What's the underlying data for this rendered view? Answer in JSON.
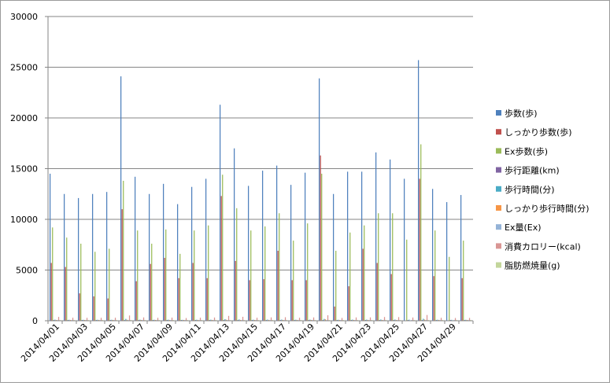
{
  "chart_data": {
    "type": "bar",
    "ylim": [
      0,
      30000
    ],
    "yticks": [
      0,
      5000,
      10000,
      15000,
      20000,
      25000,
      30000
    ],
    "grid": true,
    "legend_position": "right",
    "categories": [
      "2014/04/01",
      "2014/04/02",
      "2014/04/03",
      "2014/04/04",
      "2014/04/05",
      "2014/04/06",
      "2014/04/07",
      "2014/04/08",
      "2014/04/09",
      "2014/04/10",
      "2014/04/11",
      "2014/04/12",
      "2014/04/13",
      "2014/04/14",
      "2014/04/15",
      "2014/04/16",
      "2014/04/17",
      "2014/04/18",
      "2014/04/19",
      "2014/04/20",
      "2014/04/21",
      "2014/04/22",
      "2014/04/23",
      "2014/04/24",
      "2014/04/25",
      "2014/04/26",
      "2014/04/27",
      "2014/04/28",
      "2014/04/29",
      "2014/04/30"
    ],
    "xtick_labels": [
      "2014/04/01",
      "2014/04/03",
      "2014/04/05",
      "2014/04/07",
      "2014/04/09",
      "2014/04/11",
      "2014/04/13",
      "2014/04/15",
      "2014/04/17",
      "2014/04/19",
      "2014/04/21",
      "2014/04/23",
      "2014/04/25",
      "2014/04/27",
      "2014/04/29"
    ],
    "series": [
      {
        "name": "歩数(歩)",
        "color": "#4f81bd",
        "values": [
          14500,
          12500,
          12100,
          12500,
          12700,
          24100,
          14200,
          12500,
          13500,
          11500,
          13200,
          14000,
          21300,
          17000,
          13300,
          14800,
          15300,
          13400,
          14600,
          23900,
          12500,
          14700,
          14700,
          16600,
          15900,
          14000,
          25700,
          13000,
          11700,
          12400
        ]
      },
      {
        "name": "しっかり歩数(歩)",
        "color": "#c0504d",
        "values": [
          5700,
          5300,
          2700,
          2400,
          2200,
          11000,
          3900,
          5600,
          6200,
          4200,
          5700,
          4200,
          12300,
          5900,
          4000,
          4100,
          6900,
          4000,
          4000,
          16300,
          1400,
          3400,
          7100,
          5700,
          4600,
          0,
          14000,
          4400,
          0,
          4200
        ]
      },
      {
        "name": "Ex歩数(歩)",
        "color": "#9bbb59",
        "values": [
          9200,
          8200,
          7600,
          6800,
          7100,
          13800,
          8900,
          7600,
          9000,
          6600,
          8900,
          9400,
          14400,
          11100,
          8900,
          9300,
          10600,
          7900,
          9600,
          14500,
          6900,
          8700,
          9400,
          10600,
          10600,
          8000,
          17400,
          8900,
          6300,
          7900
        ]
      },
      {
        "name": "歩行距離(km)",
        "color": "#8064a2",
        "values": [
          10,
          9,
          9,
          9,
          9,
          17,
          10,
          9,
          10,
          8,
          10,
          10,
          15,
          12,
          10,
          11,
          11,
          10,
          10,
          17,
          9,
          10,
          10,
          12,
          11,
          10,
          18,
          9,
          8,
          9
        ]
      },
      {
        "name": "歩行時間(分)",
        "color": "#4bacc6",
        "values": [
          110,
          95,
          93,
          96,
          98,
          185,
          108,
          96,
          105,
          88,
          102,
          107,
          163,
          130,
          103,
          114,
          118,
          103,
          112,
          184,
          96,
          113,
          113,
          127,
          122,
          107,
          197,
          100,
          90,
          95
        ]
      },
      {
        "name": "しっかり歩行時間(分)",
        "color": "#f79646",
        "values": [
          50,
          45,
          22,
          20,
          19,
          95,
          33,
          48,
          53,
          36,
          49,
          36,
          105,
          50,
          34,
          35,
          59,
          34,
          34,
          140,
          12,
          29,
          61,
          49,
          39,
          0,
          120,
          38,
          0,
          36
        ]
      },
      {
        "name": "Ex量(Ex)",
        "color": "#95b3d7",
        "values": [
          2.5,
          2.2,
          2.0,
          1.8,
          1.9,
          3.8,
          2.4,
          2.0,
          2.4,
          1.8,
          2.4,
          2.5,
          3.9,
          3.0,
          2.4,
          2.5,
          2.9,
          2.1,
          2.6,
          3.9,
          1.9,
          2.4,
          2.5,
          2.9,
          2.9,
          2.2,
          4.7,
          2.4,
          1.7,
          2.1
        ]
      },
      {
        "name": "消費カロリー(kcal)",
        "color": "#d99694",
        "values": [
          380,
          300,
          290,
          290,
          300,
          520,
          330,
          290,
          310,
          270,
          300,
          320,
          480,
          390,
          300,
          330,
          350,
          300,
          330,
          540,
          280,
          330,
          330,
          370,
          360,
          320,
          570,
          290,
          270,
          280
        ]
      },
      {
        "name": "脂肪燃焼量(g)",
        "color": "#c3d69b",
        "values": [
          30,
          25,
          24,
          24,
          25,
          45,
          28,
          24,
          26,
          22,
          25,
          27,
          40,
          33,
          26,
          28,
          30,
          26,
          28,
          46,
          24,
          28,
          28,
          31,
          30,
          27,
          50,
          25,
          22,
          24
        ]
      }
    ]
  }
}
